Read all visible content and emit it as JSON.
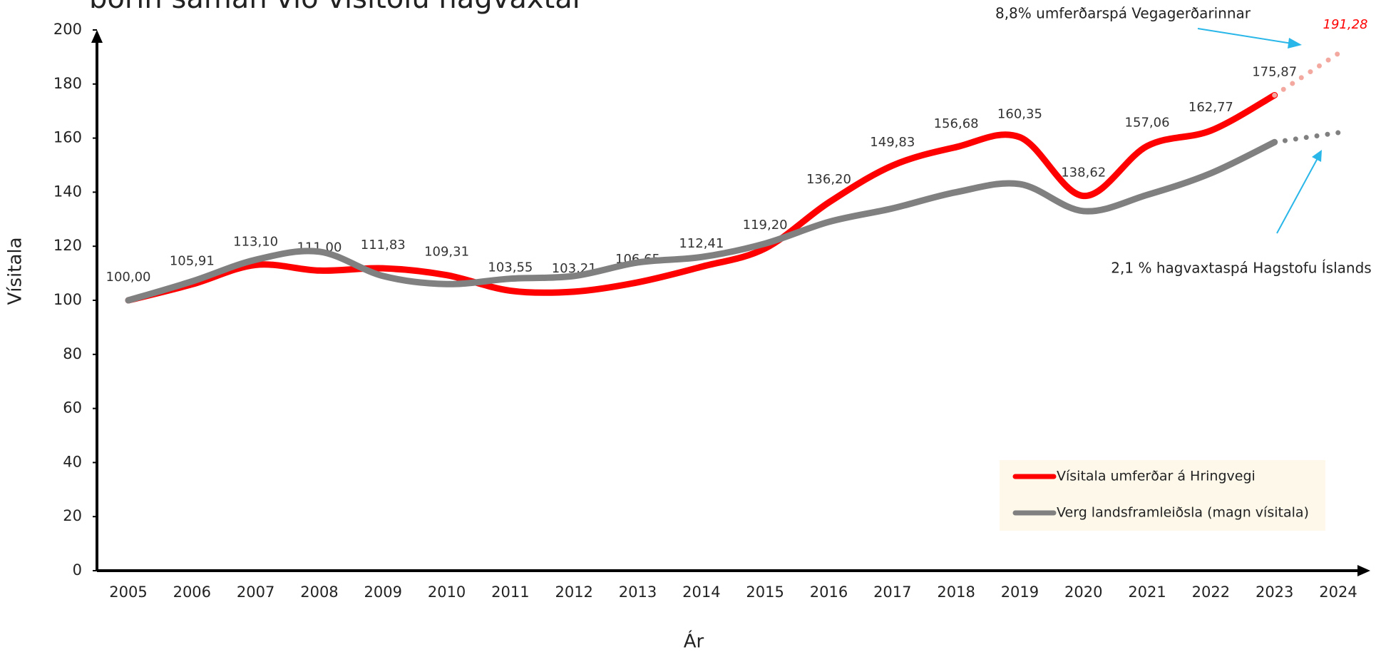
{
  "chart_data": {
    "type": "line",
    "title": "borin saman við vísitölu hagvaxtar",
    "x_label": "Ár",
    "y_label": "Vísitala",
    "categories": [
      "2005",
      "2006",
      "2007",
      "2008",
      "2009",
      "2010",
      "2011",
      "2012",
      "2013",
      "2014",
      "2015",
      "2016",
      "2017",
      "2018",
      "2019",
      "2020",
      "2021",
      "2022",
      "2023",
      "2024"
    ],
    "forecast_from": "2023",
    "series": [
      {
        "name": "Vísitala umferðar á Hringvegi",
        "color": "#ff0000",
        "forecast_color": "#f4a9a0",
        "values": [
          100.0,
          105.91,
          113.1,
          111.0,
          111.83,
          109.31,
          103.55,
          103.21,
          106.65,
          112.41,
          119.2,
          136.2,
          149.83,
          156.68,
          160.35,
          138.62,
          157.06,
          162.77,
          175.87,
          191.28
        ],
        "value_labels": [
          "100,00",
          "105,91",
          "113,10",
          "111,00",
          "111,83",
          "109,31",
          "103,55",
          "103,21",
          "106,65",
          "112,41",
          "119,20",
          "136,20",
          "149,83",
          "156,68",
          "160,35",
          "138,62",
          "157,06",
          "162,77",
          "175,87",
          "191,28"
        ]
      },
      {
        "name": "Verg landsframleiðsla (magn vísitala)",
        "color": "#808080",
        "forecast_color": "#808080",
        "values": [
          100,
          107,
          115,
          118,
          109,
          106,
          108,
          109,
          114,
          116,
          121,
          129,
          134,
          140,
          143,
          133,
          139,
          147,
          158.5,
          162
        ]
      }
    ],
    "annotations": [
      "8,8% umferðarspá Vegagerðarinnar",
      "2,1 % hagvaxtaspá Hagstofu Íslands"
    ],
    "annotation_color": "#29b6e8",
    "ylim": [
      0,
      200
    ],
    "yticks": [
      0,
      20,
      40,
      60,
      80,
      100,
      120,
      140,
      160,
      180,
      200
    ],
    "legend": "lower right"
  }
}
